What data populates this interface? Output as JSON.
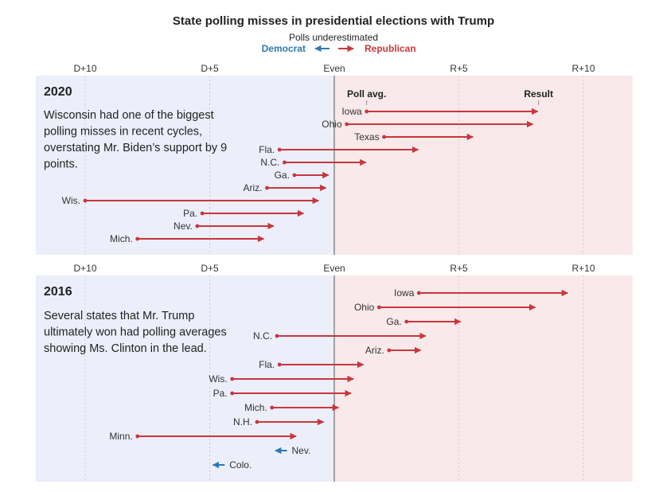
{
  "title": "State polling misses in presidential elections with Trump",
  "legend": {
    "caption": "Polls underestimated",
    "democrat": "Democrat",
    "republican": "Republican"
  },
  "colors": {
    "democrat_bg": "#eceef9",
    "republican_bg": "#f9e9ea",
    "republican": "#c8363c",
    "democrat": "#2a7ab5",
    "even_line": "#555555"
  },
  "chart_data": [
    {
      "type": "arrow",
      "year": "2020",
      "x_unit": "polling margin (negative = Democratic, positive = Republican)",
      "xlim": [
        -12,
        12
      ],
      "x_ticks": [
        {
          "value": -10,
          "label": "D+10"
        },
        {
          "value": -5,
          "label": "D+5"
        },
        {
          "value": 0,
          "label": "Even"
        },
        {
          "value": 5,
          "label": "R+5"
        },
        {
          "value": 10,
          "label": "R+10"
        }
      ],
      "column_headers": {
        "poll": "Poll avg.",
        "result": "Result"
      },
      "note": "Wisconsin had one of the biggest polling misses in recent cycles, overstating Mr. Biden’s support by 9 points.",
      "note_lines": [
        "Wisconsin had one of the biggest",
        "polling misses in recent cycles,",
        "overstating Mr. Biden’s support by 9",
        "points."
      ],
      "states": [
        {
          "state": "Iowa",
          "poll": 1.3,
          "result": 8.2
        },
        {
          "state": "Ohio",
          "poll": 0.5,
          "result": 8.0
        },
        {
          "state": "Texas",
          "poll": 2.0,
          "result": 5.6
        },
        {
          "state": "Fla.",
          "poll": -2.2,
          "result": 3.4
        },
        {
          "state": "N.C.",
          "poll": -2.0,
          "result": 1.3
        },
        {
          "state": "Ga.",
          "poll": -1.6,
          "result": -0.2
        },
        {
          "state": "Ariz.",
          "poll": -2.7,
          "result": -0.3
        },
        {
          "state": "Wis.",
          "poll": -10.0,
          "result": -0.6
        },
        {
          "state": "Pa.",
          "poll": -5.3,
          "result": -1.2
        },
        {
          "state": "Nev.",
          "poll": -5.5,
          "result": -2.4
        },
        {
          "state": "Mich.",
          "poll": -7.9,
          "result": -2.8
        }
      ]
    },
    {
      "type": "arrow",
      "year": "2016",
      "x_unit": "polling margin (negative = Democratic, positive = Republican)",
      "xlim": [
        -12,
        12
      ],
      "x_ticks": [
        {
          "value": -10,
          "label": "D+10"
        },
        {
          "value": -5,
          "label": "D+5"
        },
        {
          "value": 0,
          "label": "Even"
        },
        {
          "value": 5,
          "label": "R+5"
        },
        {
          "value": 10,
          "label": "R+10"
        }
      ],
      "note": "Several states that Mr. Trump ultimately won had polling averages showing Ms. Clinton in the lead.",
      "note_lines": [
        "Several states that Mr. Trump",
        "ultimately won had polling averages",
        "showing Ms. Clinton in the lead."
      ],
      "states": [
        {
          "state": "Iowa",
          "poll": 3.4,
          "result": 9.4
        },
        {
          "state": "Ohio",
          "poll": 1.8,
          "result": 8.1
        },
        {
          "state": "Ga.",
          "poll": 2.9,
          "result": 5.1
        },
        {
          "state": "N.C.",
          "poll": -2.3,
          "result": 3.7
        },
        {
          "state": "Ariz.",
          "poll": 2.2,
          "result": 3.5
        },
        {
          "state": "Fla.",
          "poll": -2.2,
          "result": 1.2
        },
        {
          "state": "Wis.",
          "poll": -4.1,
          "result": 0.8
        },
        {
          "state": "Pa.",
          "poll": -4.1,
          "result": 0.7
        },
        {
          "state": "Mich.",
          "poll": -2.5,
          "result": 0.2
        },
        {
          "state": "N.H.",
          "poll": -3.1,
          "result": -0.4
        },
        {
          "state": "Minn.",
          "poll": -7.9,
          "result": -1.5
        },
        {
          "state": "Nev.",
          "poll": -1.9,
          "result": -2.4
        },
        {
          "state": "Colo.",
          "poll": -4.4,
          "result": -4.9
        }
      ]
    }
  ]
}
